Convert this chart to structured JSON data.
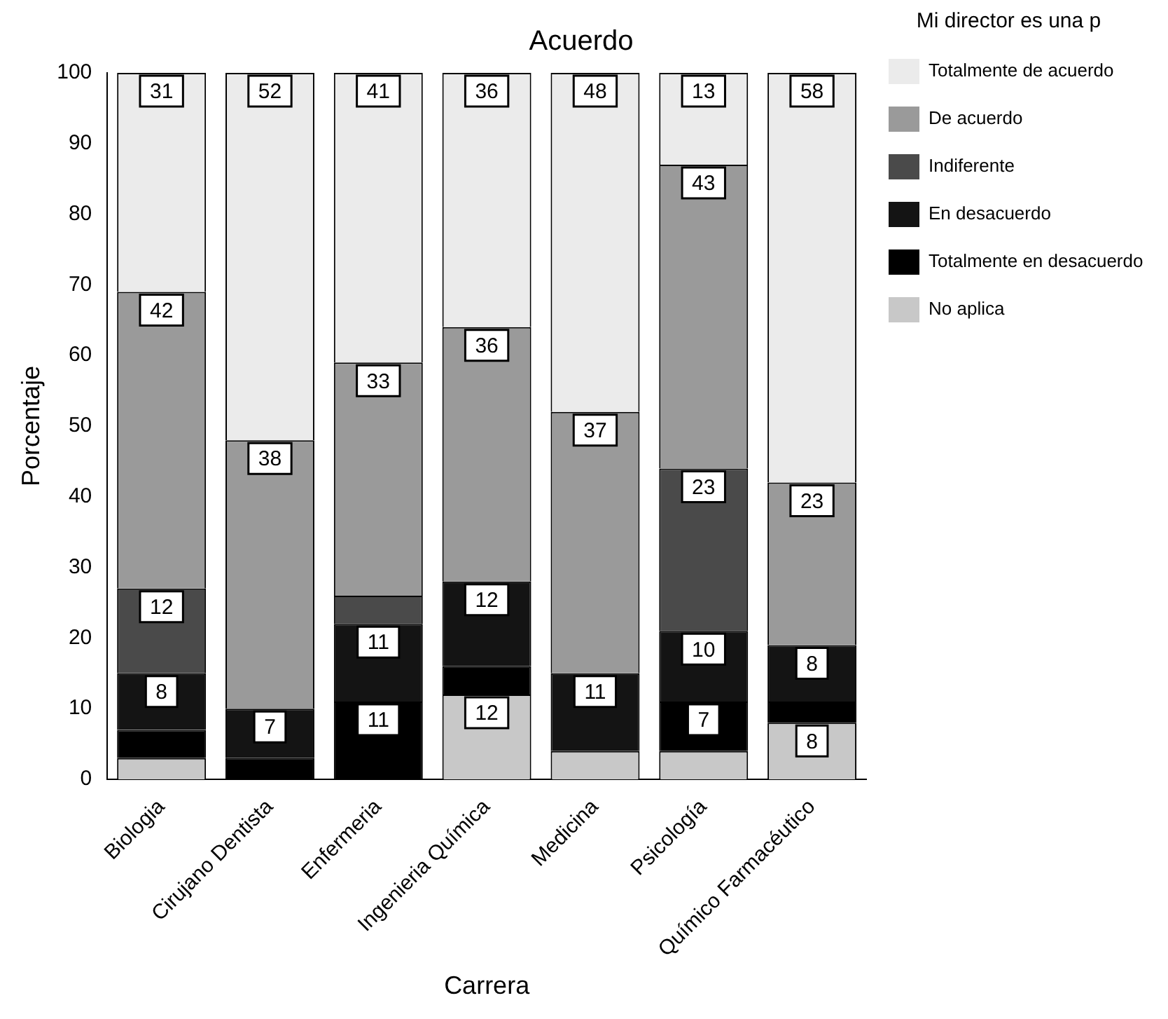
{
  "chart_data": {
    "type": "bar",
    "title": "Acuerdo",
    "xlabel": "Carrera",
    "ylabel": "Porcentaje",
    "legend_title": "Mi director es una p",
    "stacked": true,
    "legend": "right",
    "grid": false,
    "categories": [
      "Biologia",
      "Cirujano Dentista",
      "Enfermeria",
      "Ingenieria Química",
      "Medicina",
      "Psicología",
      "Químico Farmacéutico"
    ],
    "ylim": [
      0,
      100
    ],
    "yticks": [
      0,
      10,
      20,
      30,
      40,
      50,
      60,
      70,
      80,
      90,
      100
    ],
    "series": [
      {
        "name": "No aplica",
        "color": "#c8c8c8",
        "values": [
          3,
          0,
          0,
          12,
          4,
          4,
          8
        ],
        "value_labels": [
          null,
          null,
          null,
          "12",
          null,
          null,
          "8"
        ]
      },
      {
        "name": "Totalmente en desacuerdo",
        "color": "#000000",
        "values": [
          4,
          3,
          11,
          4,
          0,
          7,
          3
        ],
        "value_labels": [
          null,
          null,
          "11",
          null,
          null,
          "7",
          null
        ]
      },
      {
        "name": "En desacuerdo",
        "color": "#141414",
        "values": [
          8,
          7,
          11,
          12,
          11,
          10,
          8
        ],
        "value_labels": [
          "8",
          "7",
          "11",
          "12",
          "11",
          "10",
          "8"
        ]
      },
      {
        "name": "Indiferente",
        "color": "#4a4a4a",
        "values": [
          12,
          0,
          4,
          0,
          0,
          23,
          0
        ],
        "value_labels": [
          "12",
          null,
          null,
          null,
          null,
          "23",
          null
        ]
      },
      {
        "name": "De acuerdo",
        "color": "#9a9a9a",
        "values": [
          42,
          38,
          33,
          36,
          37,
          43,
          23
        ],
        "value_labels": [
          "42",
          "38",
          "33",
          "36",
          "37",
          "43",
          "23"
        ]
      },
      {
        "name": "Totalmente de acuerdo",
        "color": "#ebebeb",
        "values": [
          31,
          52,
          41,
          36,
          48,
          13,
          58
        ],
        "value_labels": [
          "31",
          "52",
          "41",
          "36",
          "48",
          "13",
          "58"
        ]
      }
    ]
  }
}
